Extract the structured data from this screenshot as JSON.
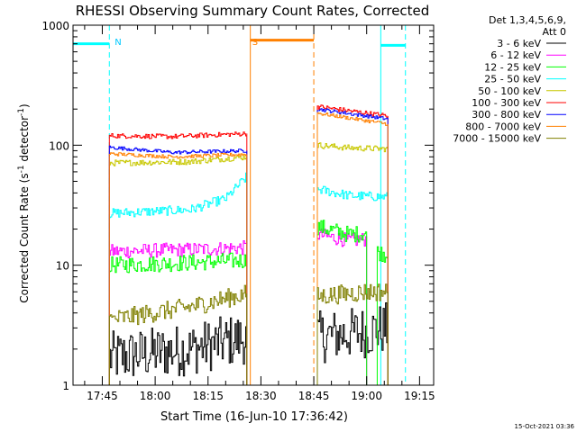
{
  "chart_data": {
    "type": "line",
    "title": "RHESSI Observing Summary Count Rates, Corrected",
    "xlabel": "Start Time (16-Jun-10 17:36:42)",
    "ylabel": "Corrected Count Rate (s⁻¹ detector⁻¹)",
    "ylabel_main": "Corrected Count Rate (s",
    "ylabel_sup1": "-1",
    "ylabel_mid": " detector",
    "ylabel_sup2": "-1",
    "ylabel_end": ")",
    "y_scale": "log",
    "ylim": [
      1,
      1000
    ],
    "xlim": [
      "17:36:42",
      "19:19:00"
    ],
    "y_ticks": [
      {
        "value": 1,
        "label": "1"
      },
      {
        "value": 10,
        "label": "10"
      },
      {
        "value": 100,
        "label": "100"
      },
      {
        "value": 1000,
        "label": "1000"
      }
    ],
    "x_ticks": [
      {
        "time": "17:45",
        "label": "17:45"
      },
      {
        "time": "18:00",
        "label": "18:00"
      },
      {
        "time": "18:15",
        "label": "18:15"
      },
      {
        "time": "18:30",
        "label": "18:30"
      },
      {
        "time": "18:45",
        "label": "18:45"
      },
      {
        "time": "19:00",
        "label": "19:00"
      },
      {
        "time": "19:15",
        "label": "19:15"
      }
    ],
    "legend_header": [
      "Det 1,3,4,5,6,9,",
      "Att 0"
    ],
    "legend_placement": "right",
    "grid": false,
    "series": [
      {
        "name": "3 - 6 keV",
        "color": "#000000",
        "segments": [
          {
            "x": [
              "17:47",
              "18:10",
              "18:26"
            ],
            "y": [
              1.7,
              2.0,
              2.5
            ]
          },
          {
            "x": [
              "18:46",
              "19:00",
              "19:06"
            ],
            "y": [
              2.5,
              2.8,
              3.0
            ]
          }
        ]
      },
      {
        "name": "6 - 12 keV",
        "color": "#ff00ff",
        "segments": [
          {
            "x": [
              "17:47",
              "18:10",
              "18:26"
            ],
            "y": [
              13,
              13.5,
              14
            ]
          },
          {
            "x": [
              "18:46",
              "18:55",
              "19:00"
            ],
            "y": [
              18,
              16,
              16.5
            ]
          }
        ]
      },
      {
        "name": "12 - 25 keV",
        "color": "#00ff00",
        "segments": [
          {
            "x": [
              "17:47",
              "18:10",
              "18:26"
            ],
            "y": [
              10,
              10.5,
              11
            ]
          },
          {
            "x": [
              "18:46",
              "18:55",
              "19:00"
            ],
            "y": [
              21,
              18,
              18.5
            ]
          },
          {
            "x": [
              "19:03",
              "19:06"
            ],
            "y": [
              13,
              12
            ]
          }
        ]
      },
      {
        "name": "25 - 50 keV",
        "color": "#00ffff",
        "segments": [
          {
            "x": [
              "17:47",
              "18:10",
              "18:20",
              "18:26"
            ],
            "y": [
              27,
              29,
              36,
              55
            ]
          },
          {
            "x": [
              "18:46",
              "18:55",
              "19:06"
            ],
            "y": [
              43,
              38,
              37
            ]
          }
        ]
      },
      {
        "name": "50 - 100 keV",
        "color": "#c8c800",
        "segments": [
          {
            "x": [
              "17:47",
              "18:10",
              "18:26"
            ],
            "y": [
              71,
              73,
              80
            ]
          },
          {
            "x": [
              "18:46",
              "18:55",
              "19:06"
            ],
            "y": [
              100,
              95,
              93
            ]
          }
        ]
      },
      {
        "name": "100 - 300 keV",
        "color": "#ff0000",
        "segments": [
          {
            "x": [
              "17:47",
              "18:05",
              "18:26"
            ],
            "y": [
              120,
              118,
              125
            ]
          },
          {
            "x": [
              "18:46",
              "19:06"
            ],
            "y": [
              210,
              175
            ]
          }
        ]
      },
      {
        "name": "300 - 800 keV",
        "color": "#0000ff",
        "segments": [
          {
            "x": [
              "17:47",
              "18:05",
              "18:26"
            ],
            "y": [
              96,
              87,
              90
            ]
          },
          {
            "x": [
              "18:46",
              "19:06"
            ],
            "y": [
              200,
              165
            ]
          }
        ]
      },
      {
        "name": "800 - 7000 keV",
        "color": "#ff8000",
        "segments": [
          {
            "x": [
              "17:47",
              "18:05",
              "18:26"
            ],
            "y": [
              85,
              80,
              84
            ]
          },
          {
            "x": [
              "18:46",
              "19:06"
            ],
            "y": [
              185,
              150
            ]
          }
        ]
      },
      {
        "name": "7000 - 15000 keV",
        "color": "#808000",
        "segments": [
          {
            "x": [
              "17:47",
              "18:10",
              "18:26"
            ],
            "y": [
              3.5,
              4.5,
              5.8
            ]
          },
          {
            "x": [
              "18:46",
              "19:00",
              "19:06"
            ],
            "y": [
              5.5,
              6.0,
              6.0
            ]
          }
        ]
      }
    ],
    "annotations": [
      {
        "text": "N",
        "time": "17:47",
        "color": "#00c8ff"
      },
      {
        "text": "S",
        "time": "18:26",
        "color": "#ff8000"
      }
    ],
    "flag_markers": [
      {
        "kind": "night",
        "color": "#00ffff",
        "start": "17:36:42",
        "end": "17:47",
        "dashed_at": "17:47",
        "level": 700
      },
      {
        "kind": "saa",
        "color": "#ff8000",
        "start": "18:27",
        "end": "18:45",
        "dashed_at": "18:45",
        "level": 750
      },
      {
        "kind": "night",
        "color": "#00ffff",
        "start": "19:04",
        "end": "19:11",
        "dashed_at": "19:11",
        "level": 680
      }
    ],
    "footer_timestamp": "15-Oct-2021 03:36"
  }
}
